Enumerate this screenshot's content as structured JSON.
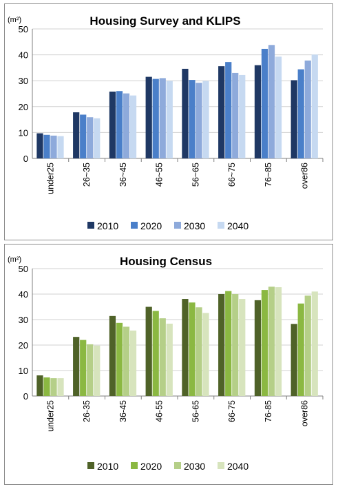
{
  "chart_data": [
    {
      "type": "bar",
      "title": "Housing Survey and KLIPS",
      "unit_label": "(m²)",
      "categories": [
        "under25",
        "26~35",
        "36~45",
        "46~55",
        "56~65",
        "66~75",
        "76~85",
        "over86"
      ],
      "series": [
        {
          "name": "2010",
          "color": "#1f3864",
          "values": [
            9.7,
            17.8,
            25.8,
            31.5,
            34.6,
            35.6,
            36.0,
            30.2
          ]
        },
        {
          "name": "2020",
          "color": "#4a7fc9",
          "values": [
            9.1,
            16.9,
            26.0,
            30.7,
            30.3,
            37.2,
            42.3,
            34.4
          ]
        },
        {
          "name": "2030",
          "color": "#8eaadb",
          "values": [
            8.8,
            15.9,
            25.1,
            31.0,
            29.2,
            33.0,
            43.8,
            37.8
          ]
        },
        {
          "name": "2040",
          "color": "#c6d9f1",
          "values": [
            8.6,
            15.5,
            24.3,
            29.9,
            29.9,
            32.2,
            39.3,
            40.1
          ]
        }
      ],
      "ylim": [
        0,
        50
      ],
      "yticks": [
        0,
        10,
        20,
        30,
        40,
        50
      ],
      "grid": true,
      "legend": "bottom"
    },
    {
      "type": "bar",
      "title": "Housing Census",
      "unit_label": "(m²)",
      "categories": [
        "under25",
        "26-35",
        "36-45",
        "46-55",
        "56-65",
        "66-75",
        "76-85",
        "over86"
      ],
      "series": [
        {
          "name": "2010",
          "color": "#4f6228",
          "values": [
            8.1,
            23.2,
            31.4,
            35.0,
            38.1,
            40.0,
            37.6,
            28.3
          ]
        },
        {
          "name": "2020",
          "color": "#8bb842",
          "values": [
            7.3,
            22.0,
            28.7,
            33.4,
            36.7,
            41.2,
            41.6,
            36.3
          ]
        },
        {
          "name": "2030",
          "color": "#b5cf88",
          "values": [
            7.0,
            20.3,
            27.2,
            30.5,
            34.8,
            40.0,
            42.9,
            39.4
          ]
        },
        {
          "name": "2040",
          "color": "#d7e4bd",
          "values": [
            7.0,
            19.8,
            25.7,
            28.4,
            32.6,
            38.1,
            42.7,
            41.0
          ]
        }
      ],
      "ylim": [
        0,
        50
      ],
      "yticks": [
        0,
        10,
        20,
        30,
        40,
        50
      ],
      "grid": true,
      "legend": "bottom"
    }
  ]
}
